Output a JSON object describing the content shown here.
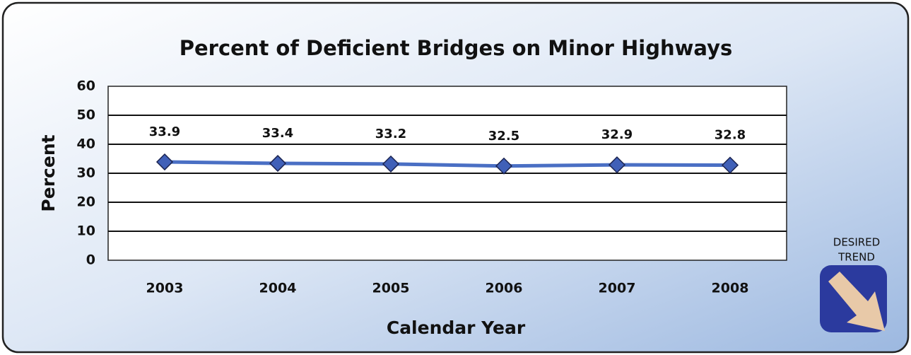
{
  "chart_data": {
    "type": "line",
    "title": "Percent of Deficient Bridges on Minor Highways",
    "x_label": "Calendar Year",
    "y_label": "Percent",
    "categories": [
      "2003",
      "2004",
      "2005",
      "2006",
      "2007",
      "2008"
    ],
    "series": [
      {
        "name": "Percent",
        "color": "#4a6fc4",
        "values": [
          33.9,
          33.4,
          33.2,
          32.5,
          32.9,
          32.8
        ]
      }
    ],
    "ylim": [
      0,
      60
    ],
    "yticks": [
      0,
      10,
      20,
      30,
      40,
      50,
      60
    ],
    "grid": true,
    "desired_trend": [
      "DESIRED",
      "TREND"
    ]
  }
}
